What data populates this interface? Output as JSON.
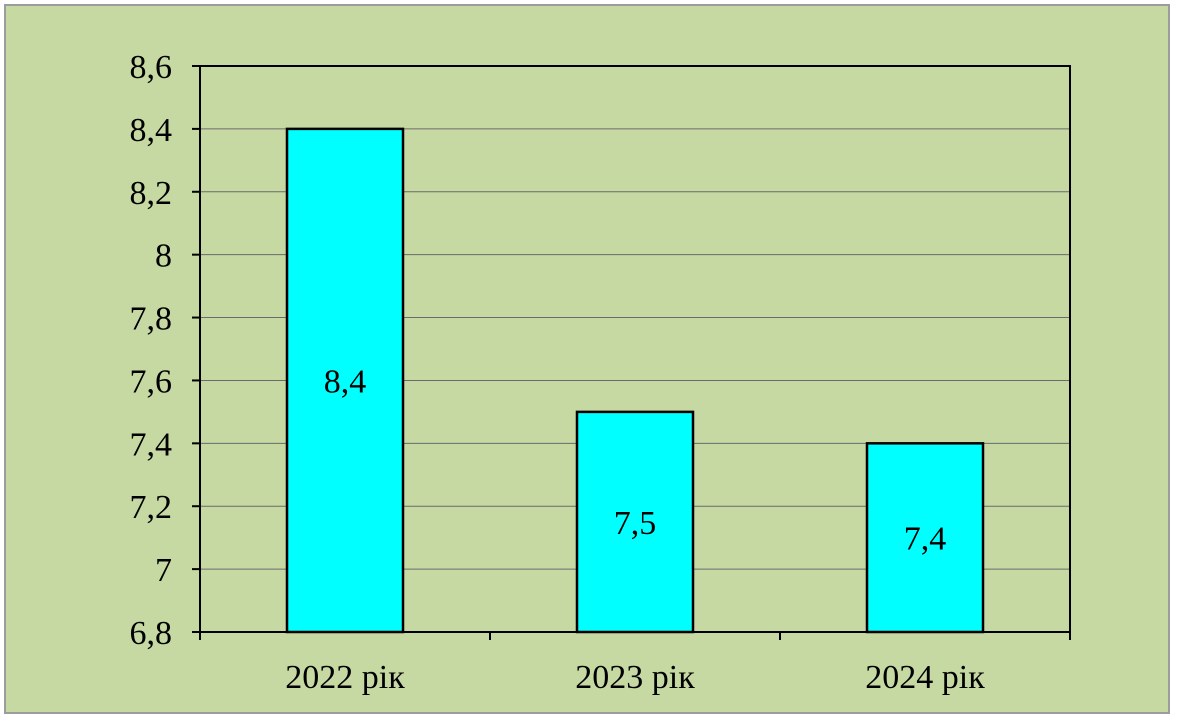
{
  "chart_data": {
    "type": "bar",
    "categories": [
      "2022 рік",
      "2023 рік",
      "2024 рік"
    ],
    "values": [
      8.4,
      7.5,
      7.4
    ],
    "data_labels": [
      "8,4",
      "7,5",
      "7,4"
    ],
    "ylim": [
      6.8,
      8.6
    ],
    "yticks": [
      6.8,
      7,
      7.2,
      7.4,
      7.6,
      7.8,
      8,
      8.2,
      8.4,
      8.6
    ],
    "ytick_labels": [
      "6,8",
      "7",
      "7,2",
      "7,4",
      "7,6",
      "7,8",
      "8",
      "8,2",
      "8,4",
      "8,6"
    ],
    "grid": true,
    "legend": "none",
    "title": "",
    "xlabel": "",
    "ylabel": "",
    "colors": {
      "bar_fill": "#00ffff",
      "bar_stroke": "#000000",
      "plot_background": "#c6d9a2",
      "gridline": "#6b6b6b",
      "axis": "#000000"
    }
  }
}
